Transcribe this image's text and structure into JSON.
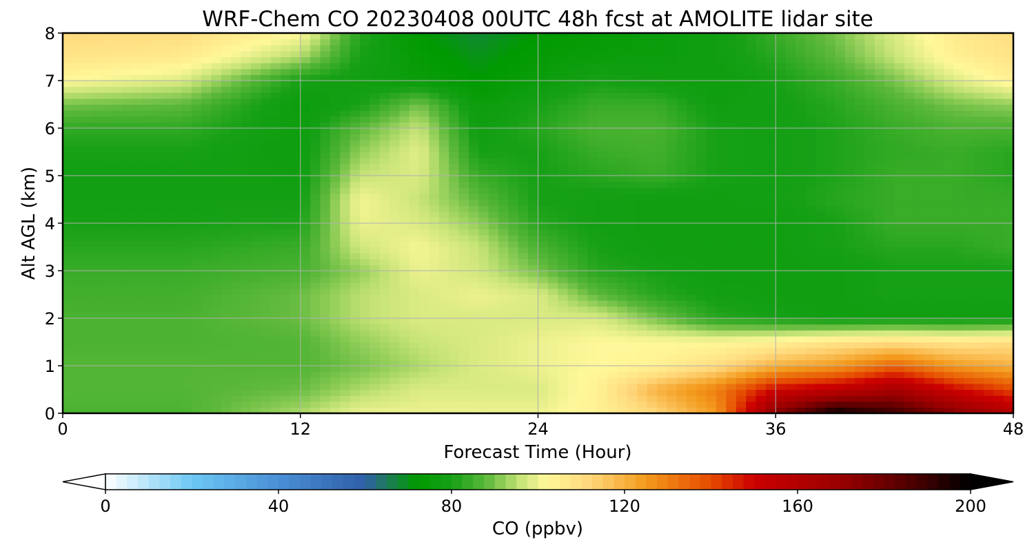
{
  "chart_data": {
    "type": "heatmap",
    "title": "WRF-Chem CO  20230408 00UTC 48h fcst at AMOLITE lidar site",
    "xlabel": "Forecast Time (Hour)",
    "ylabel": "Alt AGL (km)",
    "xlim": [
      0,
      48
    ],
    "ylim": [
      0,
      8
    ],
    "xticks": [
      "0",
      "12",
      "24",
      "36",
      "48"
    ],
    "yticks": [
      "0",
      "1",
      "2",
      "3",
      "4",
      "5",
      "6",
      "7",
      "8"
    ],
    "grid": true,
    "colorbar": {
      "label": "CO  (ppbv)",
      "range": [
        0,
        200
      ],
      "ticks": [
        "0",
        "40",
        "80",
        "120",
        "160",
        "200"
      ],
      "extend": "both",
      "colormap": [
        [
          0,
          "#ffffff"
        ],
        [
          20,
          "#6cc8f4"
        ],
        [
          40,
          "#4a8fd6"
        ],
        [
          60,
          "#2f5fa8"
        ],
        [
          65,
          "#1f7a5a"
        ],
        [
          72,
          "#009a00"
        ],
        [
          80,
          "#16a016"
        ],
        [
          88,
          "#5cb83a"
        ],
        [
          96,
          "#c8e478"
        ],
        [
          102,
          "#fff89a"
        ],
        [
          112,
          "#ffd77a"
        ],
        [
          125,
          "#f39a1c"
        ],
        [
          140,
          "#e54a00"
        ],
        [
          150,
          "#cc0000"
        ],
        [
          170,
          "#990000"
        ],
        [
          185,
          "#550000"
        ],
        [
          200,
          "#000000"
        ]
      ]
    },
    "x": [
      0,
      6,
      12,
      15,
      18,
      21,
      24,
      27,
      30,
      33,
      36,
      39,
      42,
      45,
      48
    ],
    "y": [
      0,
      0.5,
      1,
      1.5,
      2,
      2.5,
      3,
      3.5,
      4,
      4.5,
      5,
      5.5,
      6,
      6.5,
      7,
      7.5,
      8
    ],
    "values": [
      [
        86,
        86,
        94,
        100,
        100,
        100,
        100,
        104,
        112,
        125,
        175,
        200,
        190,
        175,
        160
      ],
      [
        87,
        87,
        89,
        94,
        98,
        98,
        98,
        104,
        120,
        130,
        150,
        155,
        165,
        150,
        140
      ],
      [
        87,
        87,
        87,
        90,
        94,
        98,
        100,
        102,
        104,
        110,
        120,
        125,
        135,
        125,
        120
      ],
      [
        86,
        86,
        87,
        92,
        96,
        98,
        100,
        102,
        102,
        102,
        104,
        108,
        110,
        108,
        110
      ],
      [
        86,
        86,
        89,
        95,
        98,
        98,
        98,
        98,
        90,
        82,
        80,
        78,
        78,
        78,
        78
      ],
      [
        85,
        85,
        89,
        95,
        98,
        100,
        98,
        88,
        82,
        79,
        78,
        78,
        80,
        80,
        80
      ],
      [
        84,
        84,
        86,
        92,
        100,
        97,
        90,
        82,
        80,
        78,
        78,
        78,
        80,
        80,
        80
      ],
      [
        82,
        82,
        84,
        97,
        101,
        96,
        86,
        80,
        78,
        78,
        78,
        80,
        82,
        82,
        84
      ],
      [
        80,
        80,
        81,
        100,
        98,
        92,
        82,
        79,
        78,
        78,
        78,
        80,
        84,
        84,
        84
      ],
      [
        79,
        79,
        79,
        101,
        96,
        88,
        80,
        79,
        78,
        78,
        79,
        82,
        84,
        84,
        84
      ],
      [
        79,
        79,
        78,
        96,
        98,
        84,
        80,
        82,
        84,
        80,
        79,
        81,
        84,
        84,
        82
      ],
      [
        80,
        80,
        77,
        92,
        99,
        80,
        80,
        84,
        85,
        80,
        79,
        81,
        83,
        84,
        82
      ],
      [
        83,
        83,
        77,
        88,
        96,
        78,
        82,
        86,
        86,
        80,
        79,
        81,
        84,
        86,
        86
      ],
      [
        90,
        88,
        76,
        80,
        90,
        76,
        80,
        84,
        84,
        78,
        79,
        82,
        86,
        90,
        92
      ],
      [
        102,
        98,
        80,
        78,
        76,
        72,
        76,
        80,
        78,
        77,
        80,
        84,
        90,
        98,
        104
      ],
      [
        108,
        106,
        94,
        80,
        74,
        70,
        74,
        76,
        76,
        78,
        82,
        88,
        96,
        104,
        108
      ],
      [
        111,
        110,
        102,
        82,
        72,
        68,
        72,
        74,
        76,
        78,
        84,
        90,
        98,
        106,
        110
      ]
    ]
  }
}
